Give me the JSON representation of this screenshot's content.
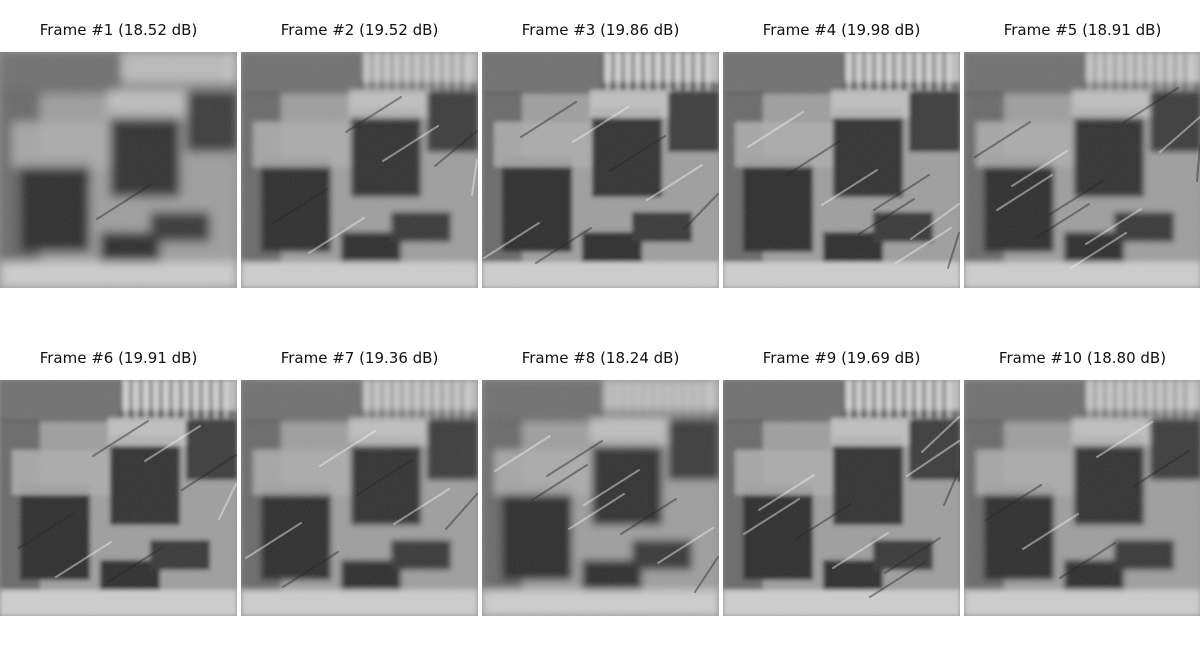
{
  "figure": {
    "frames": [
      {
        "title": "Frame #1 (18.52 dB)"
      },
      {
        "title": "Frame #2 (19.52 dB)"
      },
      {
        "title": "Frame #3 (19.86 dB)"
      },
      {
        "title": "Frame #4 (19.98 dB)"
      },
      {
        "title": "Frame #5 (18.91 dB)"
      },
      {
        "title": "Frame #6 (19.91 dB)"
      },
      {
        "title": "Frame #7 (19.36 dB)"
      },
      {
        "title": "Frame #8 (18.24 dB)"
      },
      {
        "title": "Frame #9 (19.69 dB)"
      },
      {
        "title": "Frame #10 (18.80 dB)"
      }
    ]
  }
}
